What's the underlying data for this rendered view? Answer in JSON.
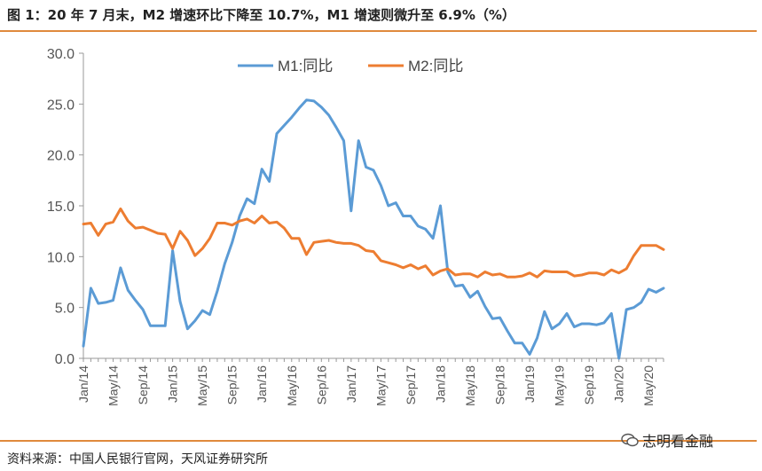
{
  "title": "图 1：20 年 7 月末，M2 增速环比下降至 10.7%，M1 增速则微升至 6.9%（%）",
  "source": "资料来源：中国人民银行官网，天风证券研究所",
  "watermark": "志明看金融",
  "colors": {
    "m1": "#5b9bd5",
    "m2": "#ed7d31",
    "rule": "#e08a3c",
    "axis": "#999999"
  },
  "chart_data": {
    "type": "line",
    "title": "",
    "xlabel": "",
    "ylabel": "",
    "ylim": [
      0,
      30
    ],
    "yticks": [
      "0.0",
      "5.0",
      "10.0",
      "15.0",
      "20.0",
      "25.0",
      "30.0"
    ],
    "xtick_labels": [
      "Jan/14",
      "May/14",
      "Sep/14",
      "Jan/15",
      "May/15",
      "Sep/15",
      "Jan/16",
      "May/16",
      "Sep/16",
      "Jan/17",
      "May/17",
      "Sep/17",
      "Jan/18",
      "May/18",
      "Sep/18",
      "Jan/19",
      "May/19",
      "Sep/19",
      "Jan/20",
      "May/20"
    ],
    "grid": false,
    "legend": "top",
    "x": [
      "2014-01",
      "2014-02",
      "2014-03",
      "2014-04",
      "2014-05",
      "2014-06",
      "2014-07",
      "2014-08",
      "2014-09",
      "2014-10",
      "2014-11",
      "2014-12",
      "2015-01",
      "2015-02",
      "2015-03",
      "2015-04",
      "2015-05",
      "2015-06",
      "2015-07",
      "2015-08",
      "2015-09",
      "2015-10",
      "2015-11",
      "2015-12",
      "2016-01",
      "2016-02",
      "2016-03",
      "2016-04",
      "2016-05",
      "2016-06",
      "2016-07",
      "2016-08",
      "2016-09",
      "2016-10",
      "2016-11",
      "2016-12",
      "2017-01",
      "2017-02",
      "2017-03",
      "2017-04",
      "2017-05",
      "2017-06",
      "2017-07",
      "2017-08",
      "2017-09",
      "2017-10",
      "2017-11",
      "2017-12",
      "2018-01",
      "2018-02",
      "2018-03",
      "2018-04",
      "2018-05",
      "2018-06",
      "2018-07",
      "2018-08",
      "2018-09",
      "2018-10",
      "2018-11",
      "2018-12",
      "2019-01",
      "2019-02",
      "2019-03",
      "2019-04",
      "2019-05",
      "2019-06",
      "2019-07",
      "2019-08",
      "2019-09",
      "2019-10",
      "2019-11",
      "2019-12",
      "2020-01",
      "2020-02",
      "2020-03",
      "2020-04",
      "2020-05",
      "2020-06",
      "2020-07"
    ],
    "series": [
      {
        "name": "M1:同比",
        "values": [
          1.2,
          6.9,
          5.4,
          5.5,
          5.7,
          8.9,
          6.7,
          5.7,
          4.8,
          3.2,
          3.2,
          3.2,
          10.6,
          5.6,
          2.9,
          3.7,
          4.7,
          4.3,
          6.6,
          9.3,
          11.4,
          14.0,
          15.7,
          15.2,
          18.6,
          17.4,
          22.1,
          22.9,
          23.7,
          24.6,
          25.4,
          25.3,
          24.7,
          23.9,
          22.7,
          21.4,
          14.5,
          21.4,
          18.8,
          18.5,
          17.0,
          15.0,
          15.3,
          14.0,
          14.0,
          13.0,
          12.7,
          11.8,
          15.0,
          8.5,
          7.1,
          7.2,
          6.0,
          6.6,
          5.1,
          3.9,
          4.0,
          2.7,
          1.5,
          1.5,
          0.4,
          2.0,
          4.6,
          2.9,
          3.4,
          4.4,
          3.1,
          3.4,
          3.4,
          3.3,
          3.5,
          4.4,
          0.0,
          4.8,
          5.0,
          5.5,
          6.8,
          6.5,
          6.9
        ]
      },
      {
        "name": "M2:同比",
        "values": [
          13.2,
          13.3,
          12.1,
          13.2,
          13.4,
          14.7,
          13.5,
          12.8,
          12.9,
          12.6,
          12.3,
          12.2,
          10.8,
          12.5,
          11.6,
          10.1,
          10.8,
          11.8,
          13.3,
          13.3,
          13.1,
          13.5,
          13.7,
          13.3,
          14.0,
          13.3,
          13.4,
          12.8,
          11.8,
          11.8,
          10.2,
          11.4,
          11.5,
          11.6,
          11.4,
          11.3,
          11.3,
          11.1,
          10.6,
          10.5,
          9.6,
          9.4,
          9.2,
          8.9,
          9.2,
          8.8,
          9.1,
          8.2,
          8.6,
          8.8,
          8.2,
          8.3,
          8.3,
          8.0,
          8.5,
          8.2,
          8.3,
          8.0,
          8.0,
          8.1,
          8.4,
          8.0,
          8.6,
          8.5,
          8.5,
          8.5,
          8.1,
          8.2,
          8.4,
          8.4,
          8.2,
          8.7,
          8.4,
          8.8,
          10.1,
          11.1,
          11.1,
          11.1,
          10.7
        ]
      }
    ]
  }
}
